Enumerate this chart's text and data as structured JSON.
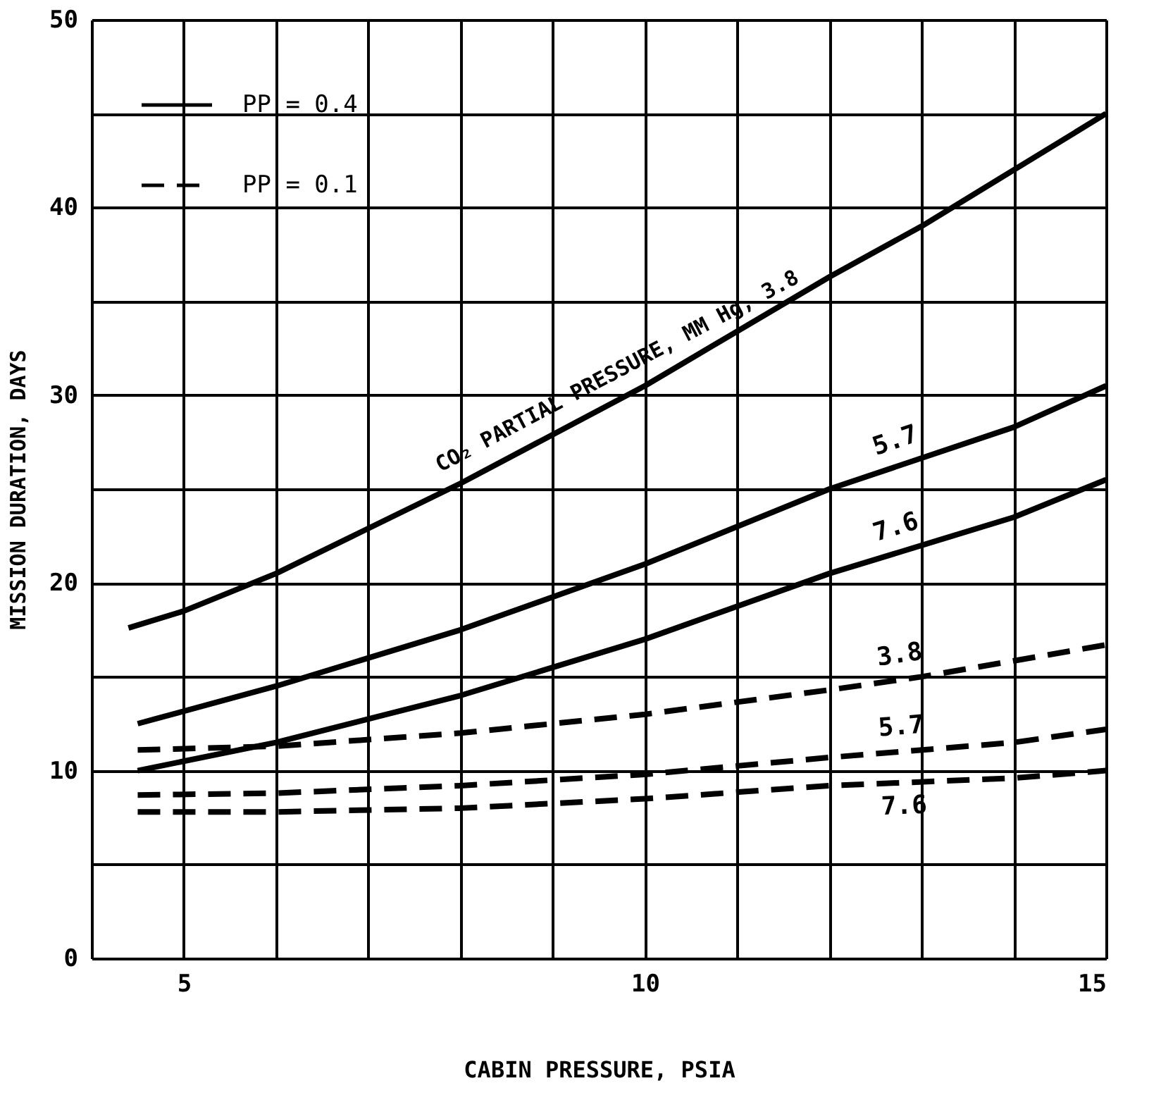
{
  "chart_data": {
    "type": "line",
    "xlabel": "CABIN PRESSURE, PSIA",
    "ylabel": "MISSION DURATION, DAYS",
    "xlim": [
      4,
      15
    ],
    "ylim": [
      0,
      50
    ],
    "xticks": [
      {
        "value": 4,
        "label": null
      },
      5,
      {
        "value": 6,
        "label": null
      },
      {
        "value": 7,
        "label": null
      },
      {
        "value": 8,
        "label": null
      },
      {
        "value": 9,
        "label": null
      },
      10,
      {
        "value": 11,
        "label": null
      },
      {
        "value": 12,
        "label": null
      },
      {
        "value": 13,
        "label": null
      },
      {
        "value": 14,
        "label": null
      },
      15
    ],
    "yticks": [
      0,
      {
        "value": 5,
        "label": null
      },
      10,
      {
        "value": 15,
        "label": null
      },
      20,
      {
        "value": 25,
        "label": null
      },
      30,
      {
        "value": 35,
        "label": null
      },
      40,
      {
        "value": 45,
        "label": null
      },
      50
    ],
    "grid": true,
    "series": [
      {
        "name": "CO₂ PARTIAL PRESSURE, MM Hg, 3.8",
        "color": "#000000",
        "line_style": "solid",
        "x": [
          4.4,
          5,
          6,
          8,
          10,
          12,
          13,
          14,
          15
        ],
        "values": [
          17.6,
          18.5,
          20.5,
          25.3,
          30.5,
          36.3,
          39,
          42,
          45
        ]
      },
      {
        "name": "5.7",
        "color": "#000000",
        "line_style": "solid",
        "x": [
          4.5,
          6,
          8,
          10,
          12,
          14,
          15
        ],
        "values": [
          12.5,
          14.5,
          17.5,
          21,
          25,
          28.3,
          30.5
        ]
      },
      {
        "name": "7.6",
        "color": "#000000",
        "line_style": "solid",
        "x": [
          4.5,
          6,
          8,
          10,
          12,
          14,
          15
        ],
        "values": [
          10,
          11.5,
          14,
          17,
          20.5,
          23.5,
          25.5
        ]
      },
      {
        "name": "3.8",
        "color": "#000000",
        "line_style": "dashed",
        "x": [
          4.5,
          6,
          8,
          10,
          12,
          13,
          15
        ],
        "values": [
          11.1,
          11.3,
          12,
          13,
          14.3,
          15,
          16.7
        ]
      },
      {
        "name": "5.7",
        "color": "#000000",
        "line_style": "dashed",
        "x": [
          4.5,
          6,
          8,
          10,
          12,
          14,
          15
        ],
        "values": [
          8.7,
          8.8,
          9.2,
          9.8,
          10.7,
          11.5,
          12.2
        ]
      },
      {
        "name": "7.6",
        "color": "#000000",
        "line_style": "dashed",
        "x": [
          4.5,
          6,
          8,
          10,
          12,
          14,
          15
        ],
        "values": [
          7.8,
          7.8,
          8,
          8.5,
          9.2,
          9.6,
          10
        ]
      }
    ],
    "annotations": [
      "PP = 0.4",
      "PP = 0.1"
    ]
  }
}
